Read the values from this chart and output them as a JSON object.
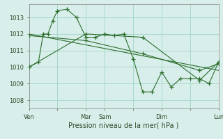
{
  "background_color": "#d8eeea",
  "grid_color": "#a8d8cc",
  "line_color": "#2d6e2d",
  "marker_color": "#2d6e2d",
  "xlabel": "Pression niveau de la mer( hPa )",
  "ylim": [
    1007.5,
    1013.8
  ],
  "yticks": [
    1008,
    1009,
    1010,
    1011,
    1012,
    1013
  ],
  "xtick_labels": [
    "Ven",
    "",
    "Mar",
    "Sam",
    "",
    "Dim",
    "",
    "Lun"
  ],
  "xtick_positions": [
    0,
    36,
    72,
    96,
    132,
    168,
    204,
    240
  ],
  "series1_x": [
    0,
    12,
    18,
    24,
    30,
    36,
    48,
    60,
    72,
    84,
    96,
    108,
    120,
    132,
    144,
    156,
    168,
    180,
    192,
    204,
    216,
    228,
    240
  ],
  "series1_y": [
    1010.0,
    1010.3,
    1012.0,
    1012.0,
    1012.8,
    1013.4,
    1013.5,
    1013.0,
    1011.8,
    1011.8,
    1012.0,
    1011.9,
    1012.0,
    1010.5,
    1008.5,
    1008.5,
    1009.7,
    1008.8,
    1009.3,
    1009.3,
    1009.3,
    1009.0,
    1010.3
  ],
  "series2_x": [
    0,
    72,
    144,
    216,
    240
  ],
  "series2_y": [
    1011.9,
    1011.6,
    1010.8,
    1009.8,
    1010.2
  ],
  "series3_x": [
    0,
    72,
    144,
    216,
    240
  ],
  "series3_y": [
    1010.0,
    1012.0,
    1011.8,
    1009.2,
    1010.3
  ],
  "trend_x": [
    0,
    240
  ],
  "trend_y": [
    1012.0,
    1009.8
  ]
}
